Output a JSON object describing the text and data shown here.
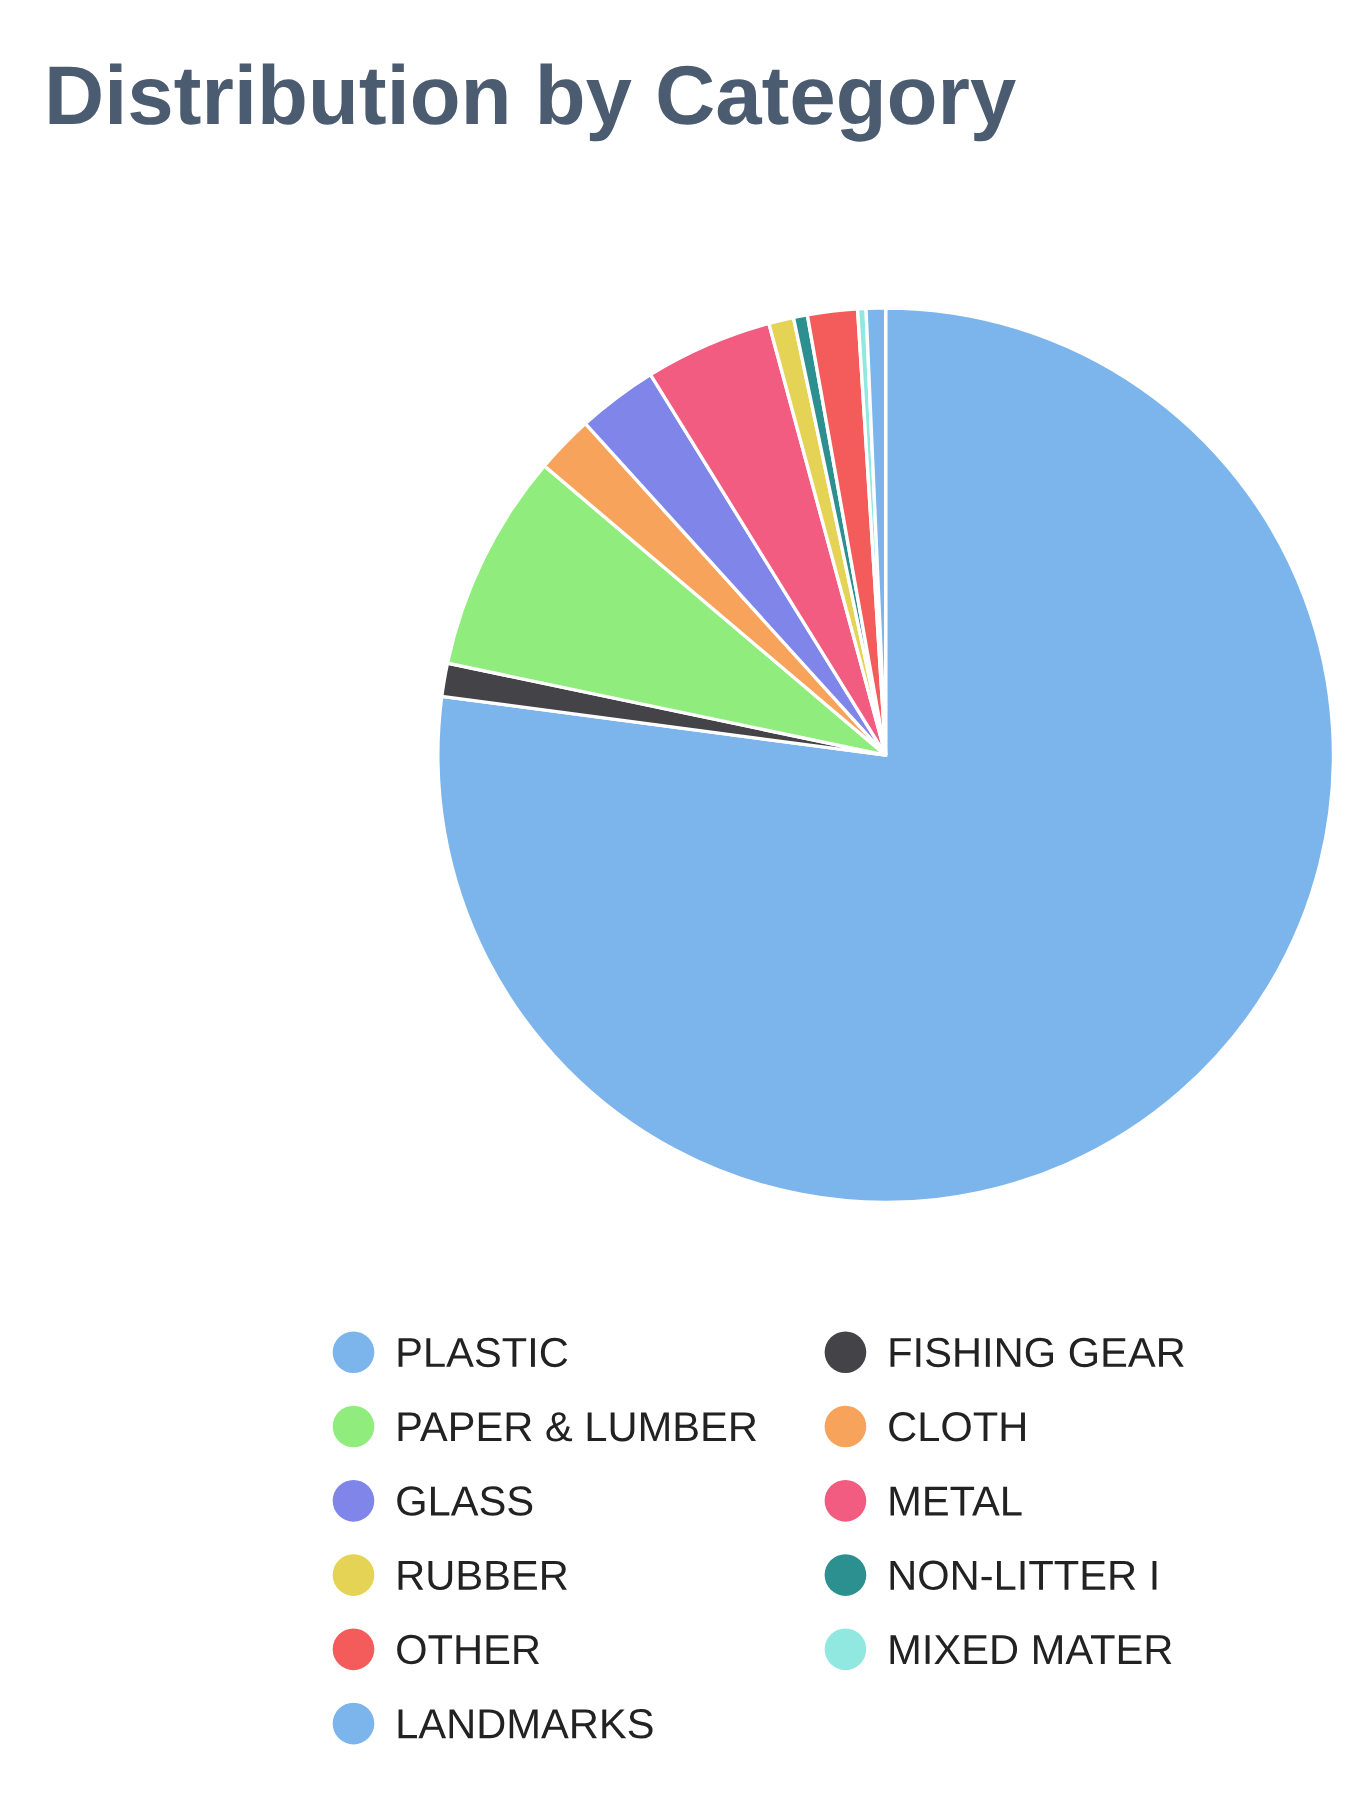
{
  "chart_data": {
    "type": "pie",
    "title": "Distribution by Category",
    "categories": [
      "PLASTIC",
      "FISHING GEAR",
      "PAPER & LUMBER",
      "CLOTH",
      "GLASS",
      "METAL",
      "RUBBER",
      "NON-LITTER I",
      "OTHER",
      "MIXED MATER",
      "LANDMARKS"
    ],
    "values": [
      77.1,
      1.2,
      7.9,
      2.1,
      2.9,
      4.6,
      0.9,
      0.5,
      1.8,
      0.3,
      0.7
    ],
    "colors": [
      "#7cb5ec",
      "#434348",
      "#90ed7d",
      "#f7a35c",
      "#8085e9",
      "#f15c80",
      "#e4d354",
      "#2b908f",
      "#f45b5b",
      "#91e8e1",
      "#7cb5ec"
    ],
    "legend": "bottom"
  }
}
